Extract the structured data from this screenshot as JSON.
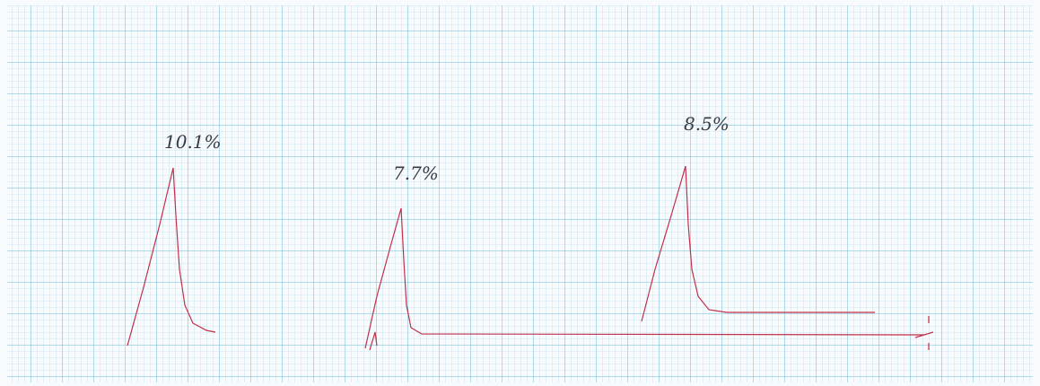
{
  "peaks": [
    {
      "label": "10.1%"
    },
    {
      "label": "7.7%"
    },
    {
      "label": "8.5%"
    }
  ]
}
